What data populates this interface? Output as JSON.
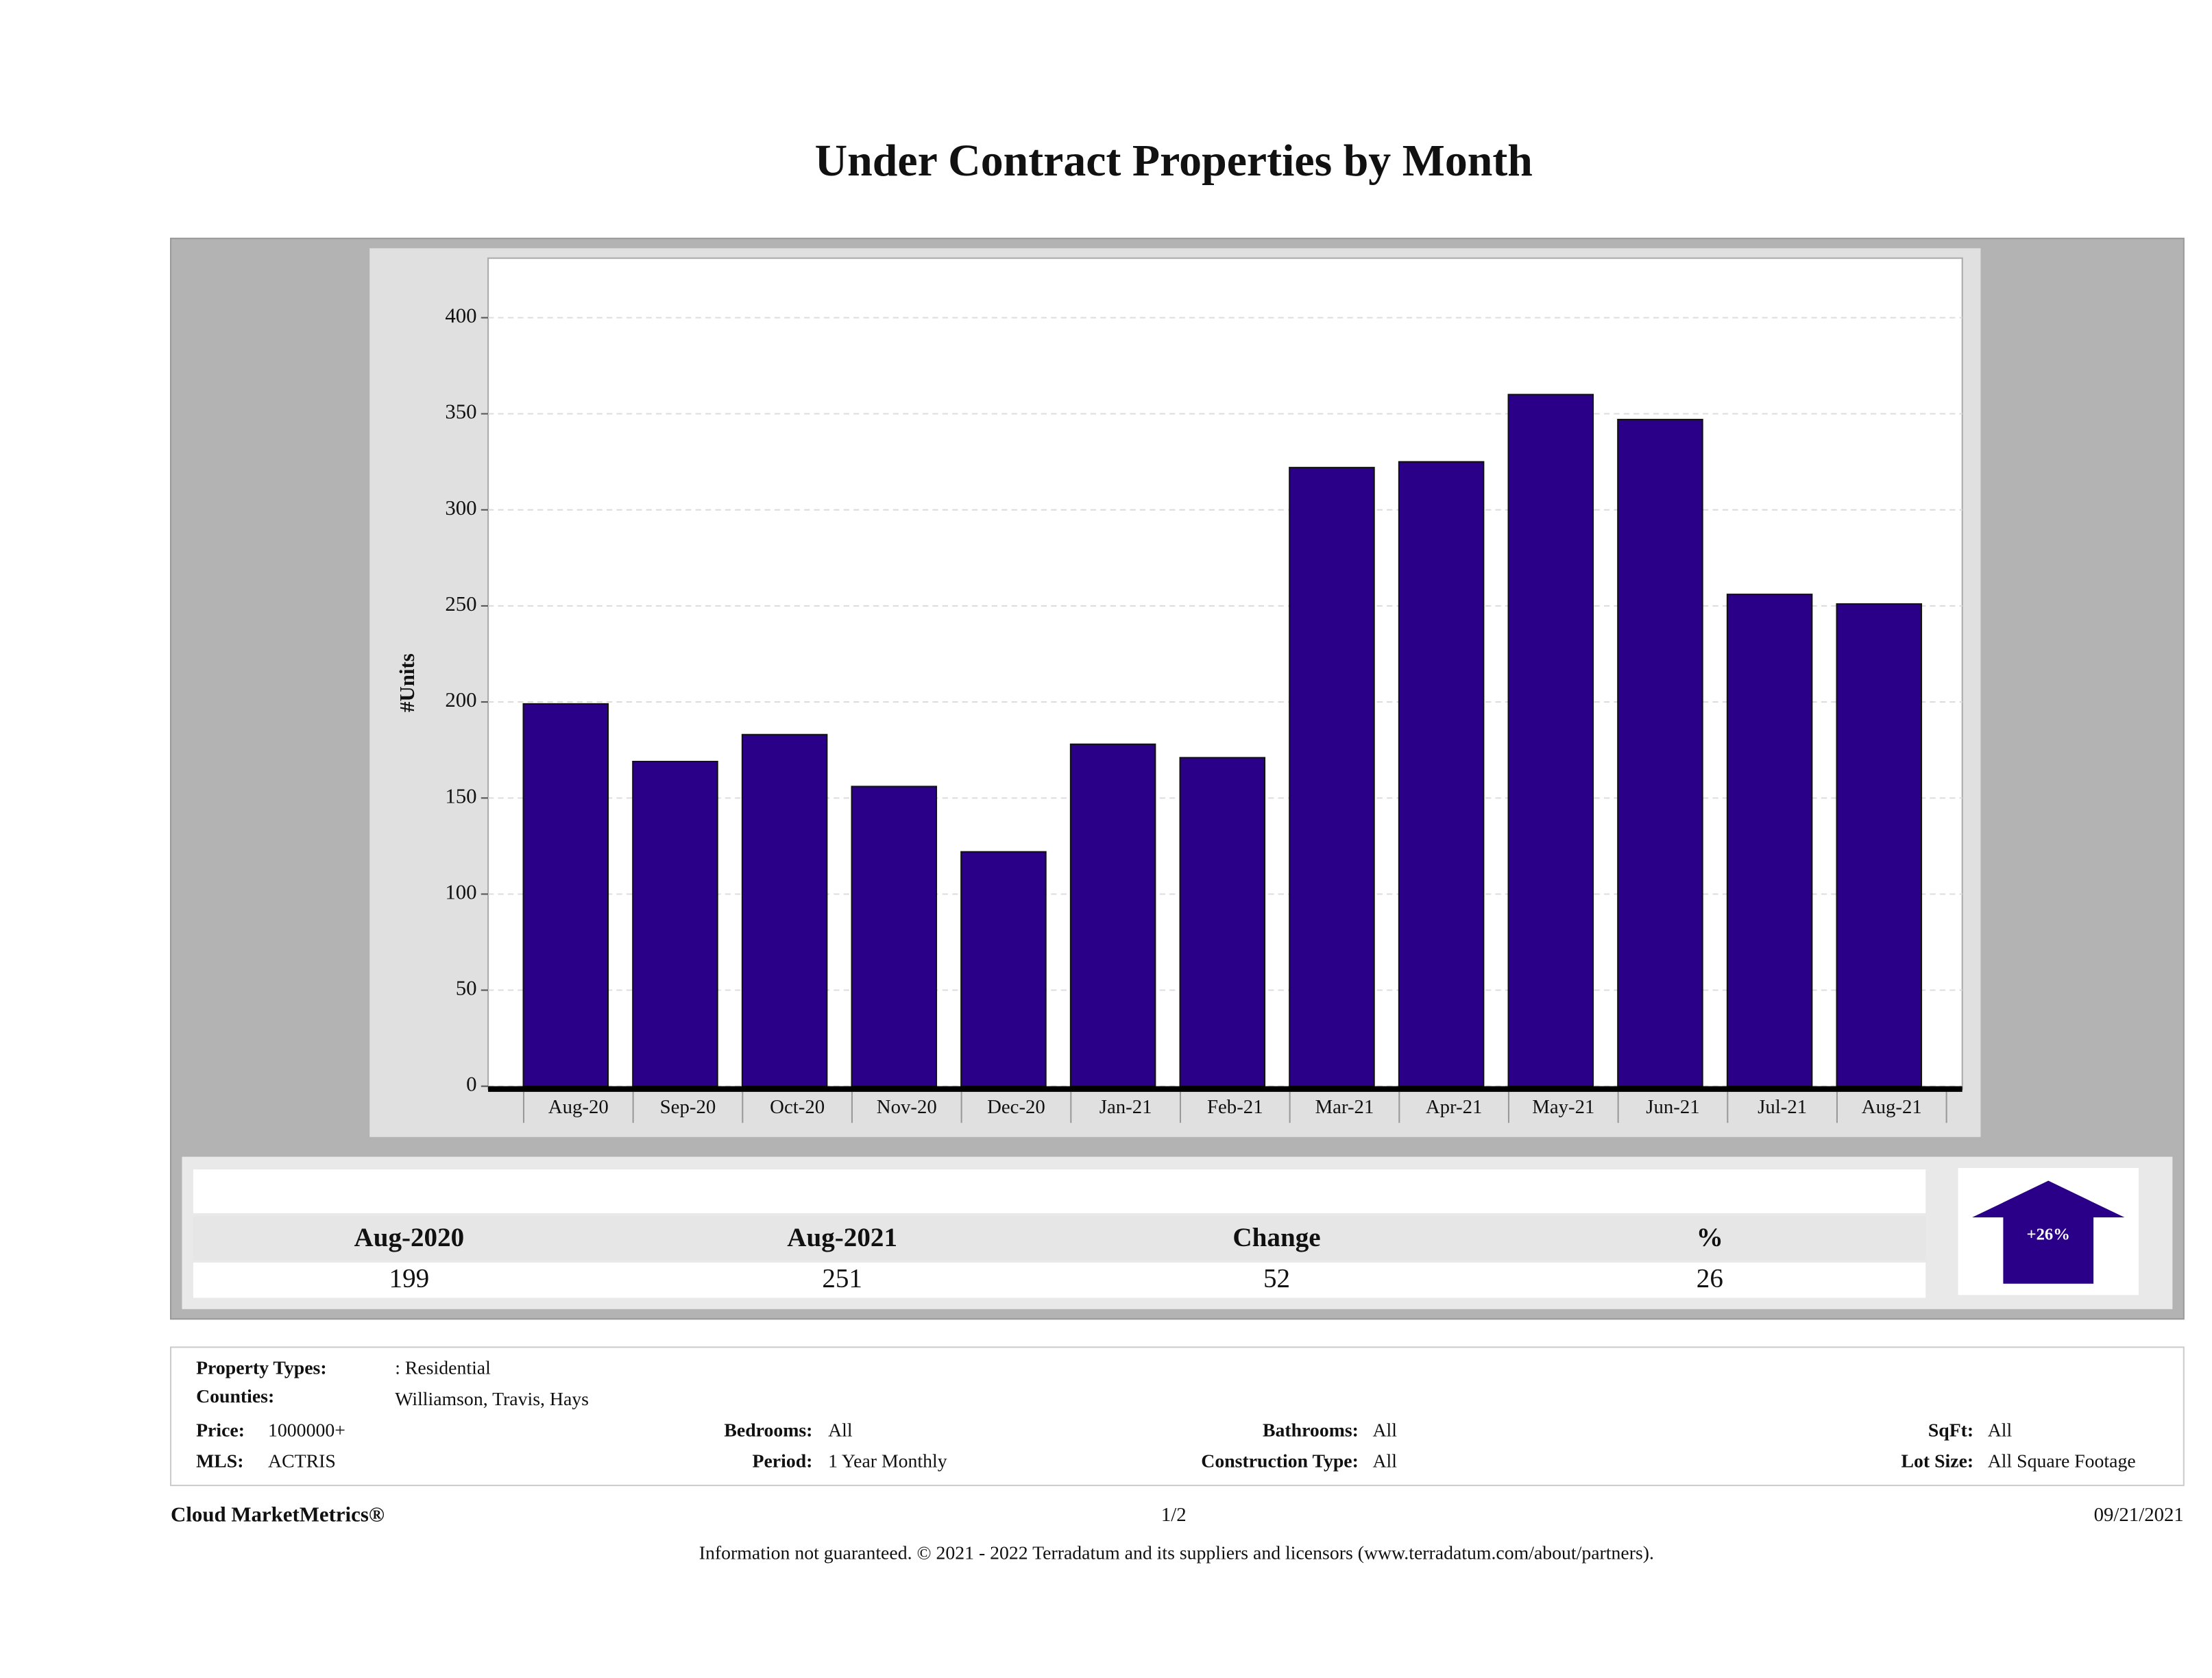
{
  "chart_data": {
    "type": "bar",
    "title": "Under Contract Properties by Month",
    "y_label": "#Units",
    "categories": [
      "Aug-20",
      "Sep-20",
      "Oct-20",
      "Nov-20",
      "Dec-20",
      "Jan-21",
      "Feb-21",
      "Mar-21",
      "Apr-21",
      "May-21",
      "Jun-21",
      "Jul-21",
      "Aug-21"
    ],
    "values": [
      199,
      169,
      183,
      156,
      122,
      178,
      171,
      322,
      325,
      360,
      347,
      256,
      251
    ],
    "color": "#2a0088",
    "ylim": [
      0,
      431
    ],
    "yticks": [
      0,
      50,
      100,
      150,
      200,
      250,
      300,
      350,
      400
    ],
    "grid": true
  },
  "summary": {
    "headers": [
      "Aug-2020",
      "Aug-2021",
      "Change",
      "%"
    ],
    "values": [
      199,
      251,
      52,
      26
    ],
    "badge": "+26%"
  },
  "filters": [
    {
      "label": "Property Types:",
      "value": ": Residential"
    },
    {
      "label": "Counties:",
      "value": "Williamson, Travis, Hays"
    },
    {
      "label": "Price:",
      "value": "1000000+"
    },
    {
      "label": "MLS:",
      "value": "ACTRIS"
    },
    {
      "label": "Bedrooms:",
      "value": "All"
    },
    {
      "label": "Period:",
      "value": "1 Year Monthly"
    },
    {
      "label": "Bathrooms:",
      "value": "All"
    },
    {
      "label": "Construction Type:",
      "value": "All"
    },
    {
      "label": "SqFt:",
      "value": "All"
    },
    {
      "label": "Lot Size:",
      "value": "All Square Footage"
    }
  ],
  "footer": {
    "brand": "Cloud MarketMetrics®",
    "page": "1/2",
    "date": "09/21/2021",
    "disclaimer": "Information not guaranteed. © 2021 - 2022 Terradatum and its suppliers and licensors (www.terradatum.com/about/partners)."
  }
}
